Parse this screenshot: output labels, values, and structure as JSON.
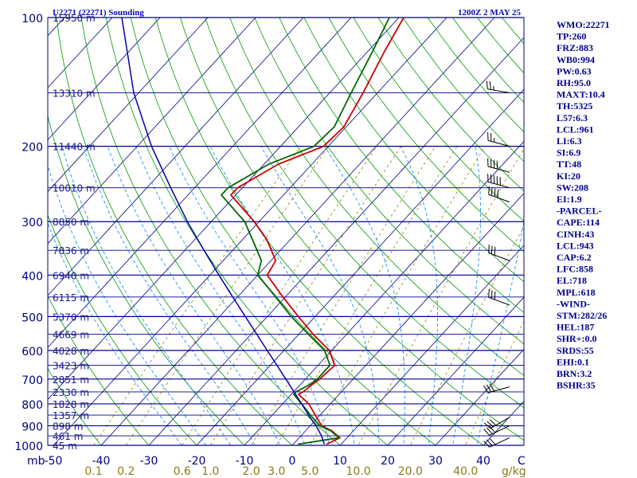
{
  "header": {
    "station_title": "U2271 (22271) Sounding",
    "time": "1200Z  2 MAY 25"
  },
  "colors": {
    "isobar": "#00008b",
    "isotherm": "#000080",
    "dry_adiabat": "#009900",
    "moist_adiabat": "#1e90ff",
    "mixing_ratio": "#8b8000",
    "temperature": "#cc0000",
    "dewpoint": "#006600",
    "parcel": "#0000aa",
    "wind_barb": "#000000"
  },
  "chart_data": {
    "type": "line",
    "diagram": "skew-T log-P",
    "pressure_unit_label": "mb",
    "mixing_ratio_unit_label": "g/kg",
    "temperature_unit_label": "C",
    "pressure_levels": [
      100,
      200,
      300,
      400,
      500,
      600,
      700,
      800,
      900,
      1000
    ],
    "temperature_ticks": [
      -50,
      -40,
      -30,
      -20,
      -10,
      0,
      10,
      20,
      30,
      40
    ],
    "mixing_ratio_ticks": [
      "0.1",
      "0.2",
      "0.6",
      "1.0",
      "2.0",
      "3.0",
      "5.0",
      "10.0",
      "20.0",
      "40.0"
    ],
    "mixing_ratio_values": [
      0.1,
      0.2,
      0.6,
      1.0,
      2.0,
      3.0,
      5.0,
      10.0,
      20.0,
      40.0
    ],
    "height_labels": [
      {
        "p": 100,
        "label": "15950 m"
      },
      {
        "p": 150,
        "label": "13310 m"
      },
      {
        "p": 200,
        "label": "11440 m"
      },
      {
        "p": 250,
        "label": "10010 m"
      },
      {
        "p": 300,
        "label": "8850 m"
      },
      {
        "p": 350,
        "label": "7836 m"
      },
      {
        "p": 400,
        "label": "6940 m"
      },
      {
        "p": 450,
        "label": "6115 m"
      },
      {
        "p": 500,
        "label": "5370 m"
      },
      {
        "p": 550,
        "label": "4669 m"
      },
      {
        "p": 600,
        "label": "4028 m"
      },
      {
        "p": 650,
        "label": "3423 m"
      },
      {
        "p": 700,
        "label": "2851 m"
      },
      {
        "p": 750,
        "label": "2330 m"
      },
      {
        "p": 800,
        "label": "1828 m"
      },
      {
        "p": 850,
        "label": "1357 m"
      },
      {
        "p": 900,
        "label": "898 m"
      },
      {
        "p": 950,
        "label": "461 m"
      },
      {
        "p": 1000,
        "label": "45 m"
      }
    ],
    "series": [
      {
        "key": "temperature",
        "points": [
          [
            994,
            7.0
          ],
          [
            960,
            8.5
          ],
          [
            925,
            5.5
          ],
          [
            900,
            2.4
          ],
          [
            850,
            -1.0
          ],
          [
            800,
            -4.5
          ],
          [
            760,
            -8.5
          ],
          [
            750,
            -8.0
          ],
          [
            720,
            -7.5
          ],
          [
            700,
            -7.0
          ],
          [
            650,
            -6.5
          ],
          [
            600,
            -10.5
          ],
          [
            550,
            -17.0
          ],
          [
            500,
            -23.5
          ],
          [
            450,
            -30.5
          ],
          [
            400,
            -38.0
          ],
          [
            370,
            -39.0
          ],
          [
            330,
            -45.0
          ],
          [
            300,
            -51.0
          ],
          [
            260,
            -61.0
          ],
          [
            250,
            -61.0
          ],
          [
            220,
            -57.0
          ],
          [
            200,
            -51.0
          ],
          [
            180,
            -50.5
          ],
          [
            150,
            -53.0
          ],
          [
            120,
            -56.5
          ],
          [
            100,
            -59.0
          ]
        ]
      },
      {
        "key": "dewpoint",
        "points": [
          [
            994,
            1.0
          ],
          [
            960,
            8.3
          ],
          [
            925,
            5.3
          ],
          [
            900,
            2.0
          ],
          [
            850,
            -2.0
          ],
          [
            800,
            -6.0
          ],
          [
            760,
            -9.5
          ],
          [
            750,
            -9.5
          ],
          [
            720,
            -8.0
          ],
          [
            700,
            -7.5
          ],
          [
            650,
            -7.5
          ],
          [
            600,
            -11.5
          ],
          [
            550,
            -18.0
          ],
          [
            500,
            -25.0
          ],
          [
            450,
            -32.0
          ],
          [
            400,
            -40.0
          ],
          [
            370,
            -42.0
          ],
          [
            330,
            -48.0
          ],
          [
            300,
            -53.0
          ],
          [
            260,
            -63.0
          ],
          [
            250,
            -63.0
          ],
          [
            220,
            -59.0
          ],
          [
            200,
            -53.0
          ],
          [
            180,
            -52.5
          ],
          [
            150,
            -55.5
          ],
          [
            120,
            -59.0
          ],
          [
            100,
            -62.0
          ]
        ]
      },
      {
        "key": "parcel",
        "points": [
          [
            994,
            6.5
          ],
          [
            950,
            4.3
          ],
          [
            900,
            1.2
          ],
          [
            850,
            -2.4
          ],
          [
            800,
            -6.0
          ],
          [
            750,
            -9.9
          ],
          [
            700,
            -14.1
          ],
          [
            650,
            -18.6
          ],
          [
            600,
            -23.5
          ],
          [
            550,
            -28.8
          ],
          [
            500,
            -34.6
          ],
          [
            450,
            -41.0
          ],
          [
            400,
            -48.1
          ],
          [
            350,
            -56.0
          ],
          [
            300,
            -65.0
          ],
          [
            250,
            -75.0
          ],
          [
            200,
            -87.0
          ],
          [
            150,
            -101.0
          ],
          [
            100,
            -118.0
          ]
        ]
      }
    ],
    "wind_barbs": [
      {
        "p": 150,
        "dir": 280,
        "spd": 25
      },
      {
        "p": 200,
        "dir": 285,
        "spd": 25
      },
      {
        "p": 230,
        "dir": 285,
        "spd": 40
      },
      {
        "p": 250,
        "dir": 285,
        "spd": 50
      },
      {
        "p": 270,
        "dir": 290,
        "spd": 40
      },
      {
        "p": 370,
        "dir": 290,
        "spd": 30
      },
      {
        "p": 470,
        "dir": 290,
        "spd": 30
      },
      {
        "p": 730,
        "dir": 255,
        "spd": 30
      },
      {
        "p": 860,
        "dir": 240,
        "spd": 30
      },
      {
        "p": 900,
        "dir": 245,
        "spd": 30
      },
      {
        "p": 960,
        "dir": 245,
        "spd": 30
      }
    ]
  },
  "indices": [
    "WMO:22271",
    "TP:260",
    "FRZ:883",
    "WB0:994",
    "PW:0.63",
    "RH:95.0",
    "MAXT:10.4",
    "TH:5325",
    "L57:6.3",
    "LCL:961",
    "LI:6.3",
    "SI:6.9",
    "TT:48",
    "KI:20",
    "SW:208",
    "EI:1.9",
    "-PARCEL-",
    "CAPE:114",
    "CINH:43",
    "LCL:943",
    "CAP:6.2",
    "LFC:858",
    "EL:718",
    "MPL:618",
    "-WIND-",
    "STM:282/26",
    "HEL:187",
    "SHR+:0.0",
    "SRDS:55",
    "EHI:0.1",
    "BRN:3.2",
    "BSHR:35"
  ]
}
